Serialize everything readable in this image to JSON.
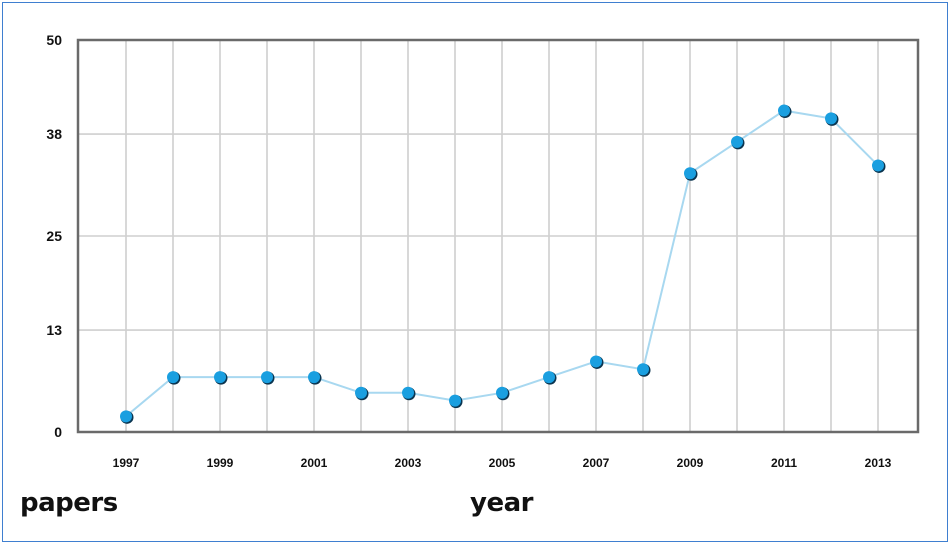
{
  "chart_data": {
    "type": "line",
    "x": [
      1997,
      1998,
      1999,
      2000,
      2001,
      2002,
      2003,
      2004,
      2005,
      2006,
      2007,
      2008,
      2009,
      2010,
      2011,
      2012,
      2013
    ],
    "series": [
      {
        "values": [
          2,
          7,
          7,
          7,
          7,
          5,
          5,
          4,
          5,
          7,
          9,
          8,
          33,
          37,
          41,
          40,
          34
        ]
      }
    ],
    "x_tick_labels": [
      "1997",
      "1999",
      "2001",
      "2003",
      "2005",
      "2007",
      "2009",
      "2011",
      "2013"
    ],
    "y_ticks": [
      0,
      13,
      25,
      38,
      50
    ],
    "y_tick_labels": [
      "0",
      "13",
      "25",
      "38",
      "50"
    ],
    "xlim": [
      1997,
      2013
    ],
    "ylim": [
      0,
      50
    ],
    "grid": true,
    "line_color": "#a8d8f0",
    "marker_color": "#1a9fe0"
  },
  "labels": {
    "left": "papers",
    "center": "year"
  }
}
